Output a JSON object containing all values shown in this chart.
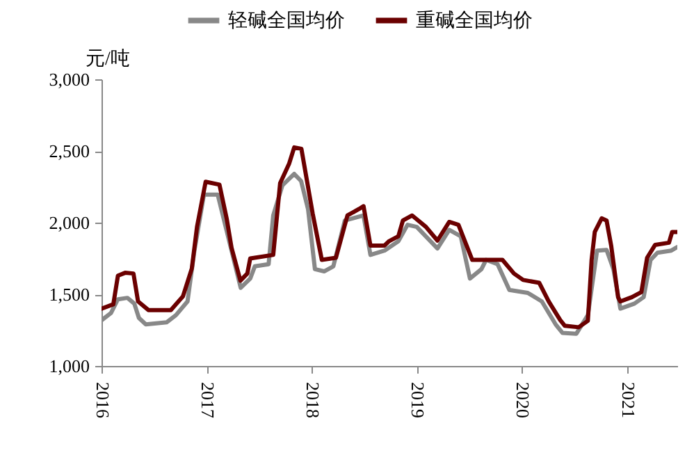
{
  "chart_data": {
    "type": "line",
    "ylabel": "元/吨",
    "xlim": [
      "2016-01-01",
      "2021-06-25"
    ],
    "xticks": [
      "2016",
      "2017",
      "2018",
      "2019",
      "2020",
      "2021"
    ],
    "ylim": [
      1000,
      3000
    ],
    "yticks": [
      {
        "value": 1000,
        "label": "1,000"
      },
      {
        "value": 1500,
        "label": "1,500"
      },
      {
        "value": 2000,
        "label": "2,000"
      },
      {
        "value": 2500,
        "label": "2,500"
      },
      {
        "value": 3000,
        "label": "3,000"
      }
    ],
    "grid": false,
    "legend": "top",
    "line_style": "solid",
    "marker": "none",
    "series": [
      {
        "name": "轻碱全国均价",
        "color": "#888888",
        "x": [
          "2016-01-02",
          "2016-02-03",
          "2016-02-27",
          "2016-03-31",
          "2016-04-24",
          "2016-05-10",
          "2016-06-03",
          "2016-08-15",
          "2016-09-16",
          "2016-10-26",
          "2016-11-19",
          "2016-12-22",
          "2017-02-08",
          "2017-03-12",
          "2017-04-05",
          "2017-04-29",
          "2017-06-01",
          "2017-06-17",
          "2017-08-04",
          "2017-08-20",
          "2017-09-21",
          "2017-11-01",
          "2017-11-25",
          "2017-12-19",
          "2018-01-12",
          "2018-02-13",
          "2018-03-17",
          "2018-04-26",
          "2018-06-30",
          "2018-07-24",
          "2018-09-11",
          "2018-10-29",
          "2018-11-30",
          "2019-01-01",
          "2019-03-14",
          "2019-04-24",
          "2019-06-03",
          "2019-07-05",
          "2019-08-14",
          "2019-08-30",
          "2019-10-09",
          "2019-11-19",
          "2020-01-22",
          "2020-03-11",
          "2020-04-28",
          "2020-05-22",
          "2020-07-09",
          "2020-08-18",
          "2020-09-19",
          "2020-10-22",
          "2020-11-15",
          "2020-12-09",
          "2021-01-27",
          "2021-02-28",
          "2021-03-24",
          "2021-04-17",
          "2021-06-04",
          "2021-06-25"
        ],
        "values": [
          1320,
          1370,
          1465,
          1475,
          1435,
          1335,
          1290,
          1305,
          1355,
          1450,
          1805,
          2195,
          2195,
          1935,
          1740,
          1545,
          1610,
          1695,
          1710,
          2050,
          2260,
          2340,
          2290,
          2095,
          1675,
          1660,
          1695,
          2015,
          2050,
          1775,
          1805,
          1870,
          1985,
          1970,
          1820,
          1950,
          1905,
          1610,
          1675,
          1740,
          1710,
          1530,
          1510,
          1450,
          1290,
          1230,
          1225,
          1355,
          1805,
          1810,
          1675,
          1400,
          1435,
          1480,
          1740,
          1790,
          1805,
          1830
        ]
      },
      {
        "name": "重碱全国均价",
        "color": "#6b0000",
        "x": [
          "2016-01-01",
          "2016-02-11",
          "2016-02-27",
          "2016-03-23",
          "2016-04-21",
          "2016-05-07",
          "2016-06-12",
          "2016-08-29",
          "2016-10-10",
          "2016-11-10",
          "2016-11-28",
          "2016-12-28",
          "2017-02-14",
          "2017-03-11",
          "2017-03-28",
          "2017-04-28",
          "2017-05-22",
          "2017-06-01",
          "2017-08-20",
          "2017-09-13",
          "2017-10-14",
          "2017-11-01",
          "2017-11-26",
          "2018-01-04",
          "2018-02-05",
          "2018-03-26",
          "2018-05-05",
          "2018-06-14",
          "2018-06-30",
          "2018-07-24",
          "2018-09-11",
          "2018-09-26",
          "2018-10-29",
          "2018-11-14",
          "2018-12-16",
          "2019-02-02",
          "2019-03-14",
          "2019-04-24",
          "2019-05-26",
          "2019-07-13",
          "2019-10-26",
          "2019-12-05",
          "2020-01-06",
          "2020-03-02",
          "2020-04-04",
          "2020-05-14",
          "2020-05-30",
          "2020-07-17",
          "2020-08-18",
          "2020-08-31",
          "2020-09-11",
          "2020-10-05",
          "2020-10-22",
          "2020-11-07",
          "2020-12-01",
          "2020-12-09",
          "2021-01-18",
          "2021-02-20",
          "2021-03-12",
          "2021-04-09",
          "2021-05-27",
          "2021-06-07",
          "2021-06-25"
        ],
        "values": [
          1400,
          1430,
          1630,
          1650,
          1645,
          1450,
          1390,
          1390,
          1485,
          1680,
          1970,
          2285,
          2265,
          2030,
          1825,
          1595,
          1645,
          1750,
          1775,
          2275,
          2410,
          2525,
          2515,
          2065,
          1740,
          1755,
          2050,
          2095,
          2115,
          1840,
          1840,
          1870,
          1905,
          2015,
          2050,
          1970,
          1875,
          2005,
          1985,
          1740,
          1740,
          1645,
          1600,
          1580,
          1450,
          1320,
          1280,
          1270,
          1315,
          1740,
          1935,
          2030,
          2015,
          1840,
          1480,
          1450,
          1480,
          1515,
          1755,
          1845,
          1860,
          1935,
          1935
        ]
      }
    ]
  }
}
